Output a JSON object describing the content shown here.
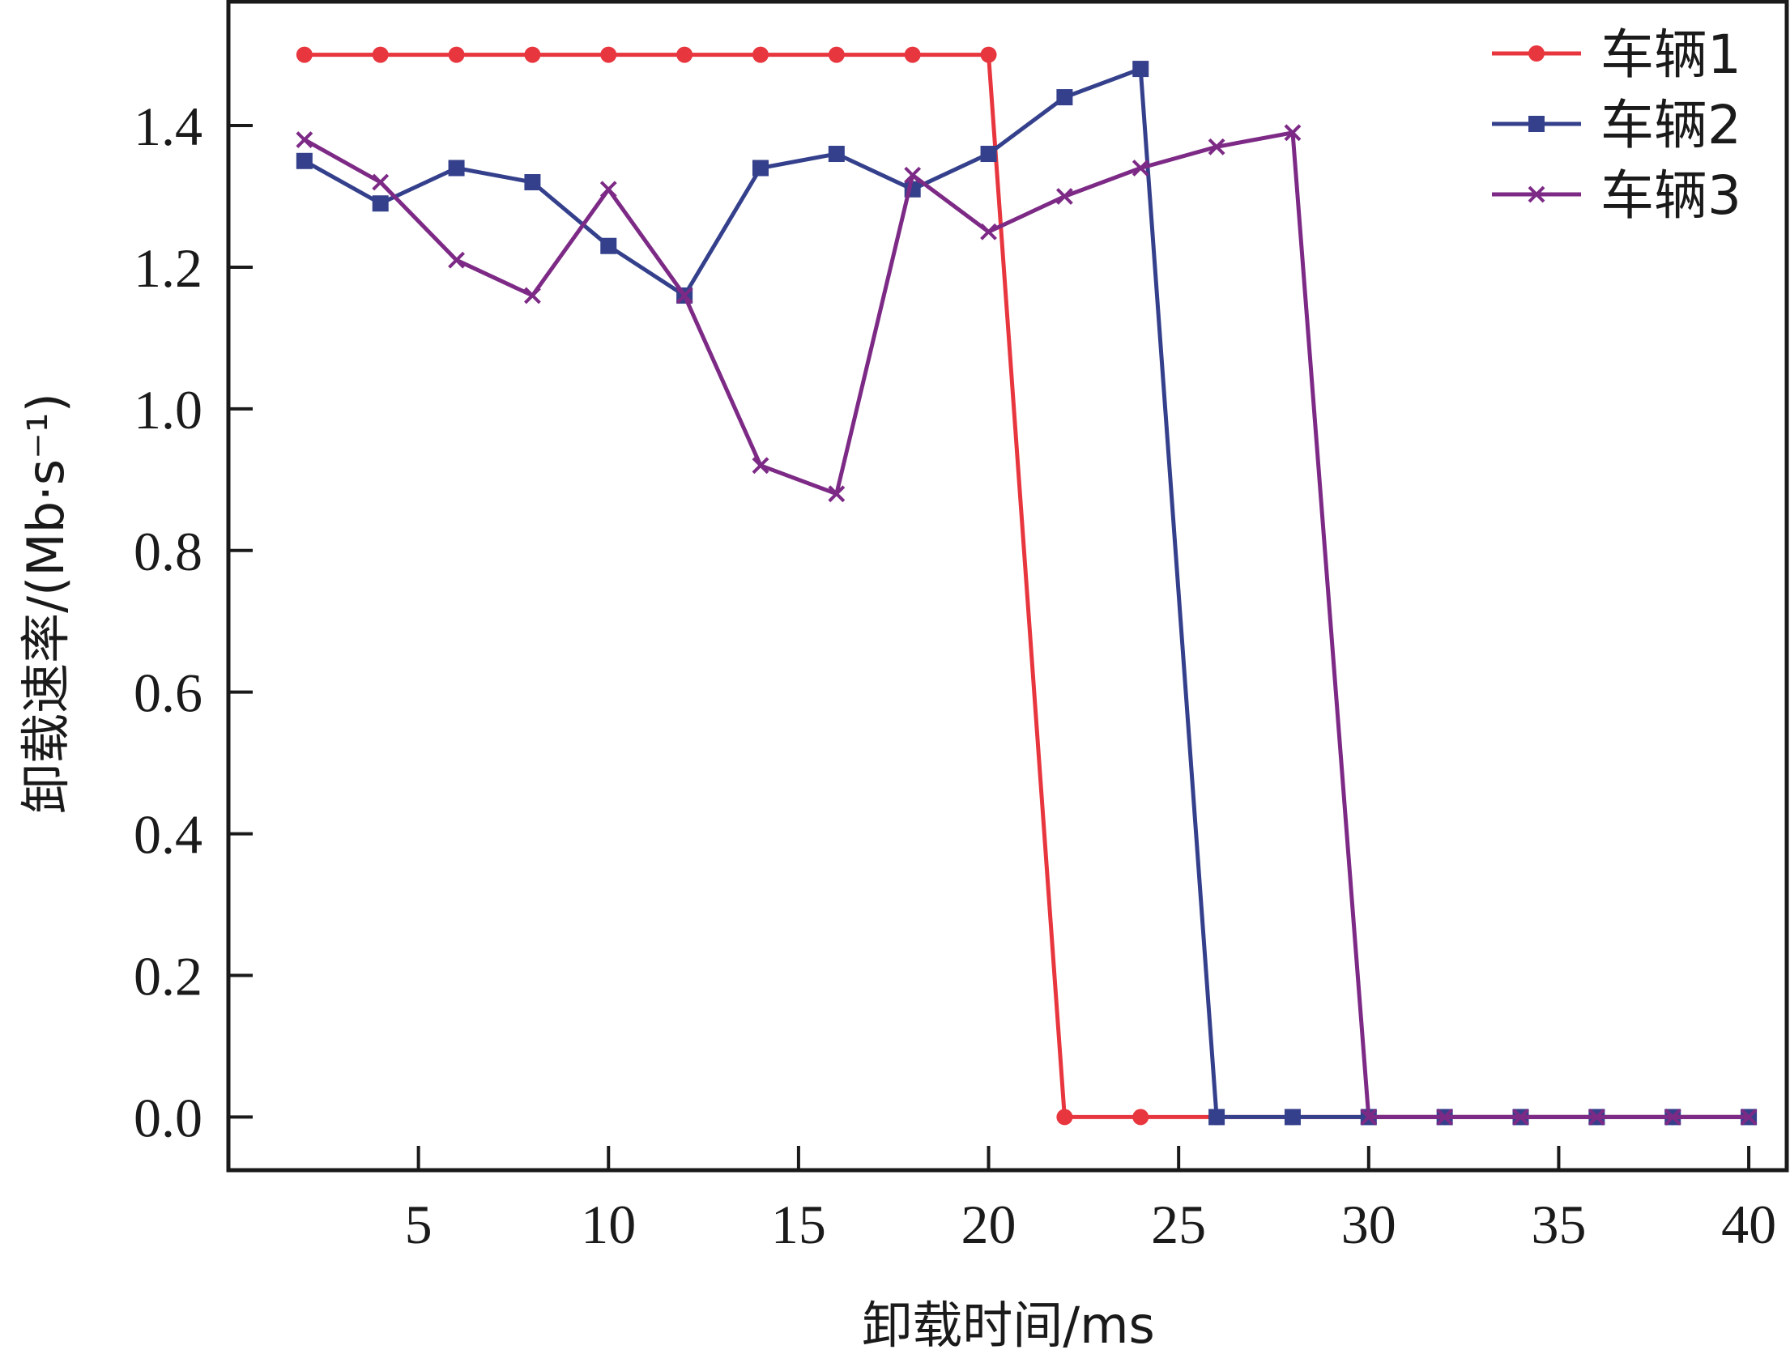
{
  "chart_data": {
    "type": "line",
    "xlabel": "卸载时间/ms",
    "ylabel": "卸载速率/(Mb·s⁻¹)",
    "xlim": [
      0,
      41
    ],
    "ylim": [
      -0.075,
      1.575
    ],
    "xticks": [
      5,
      10,
      15,
      20,
      25,
      30,
      35,
      40
    ],
    "xtick_labels": [
      "5",
      "10",
      "15",
      "20",
      "25",
      "30",
      "35",
      "40"
    ],
    "yticks": [
      0.0,
      0.2,
      0.4,
      0.6,
      0.8,
      1.0,
      1.2,
      1.4
    ],
    "ytick_labels": [
      "0.0",
      "0.2",
      "0.4",
      "0.6",
      "0.8",
      "1.0",
      "1.2",
      "1.4"
    ],
    "grid": false,
    "legend_position": "top-right",
    "series": [
      {
        "name": "车辆1",
        "color": "#e8363f",
        "marker": "circle",
        "x": [
          2,
          4,
          6,
          8,
          10,
          12,
          14,
          16,
          18,
          20,
          22,
          24,
          26,
          28,
          30,
          32,
          34,
          36,
          38,
          40
        ],
        "y": [
          1.5,
          1.5,
          1.5,
          1.5,
          1.5,
          1.5,
          1.5,
          1.5,
          1.5,
          1.5,
          0,
          0,
          0,
          0,
          0,
          0,
          0,
          0,
          0,
          0
        ]
      },
      {
        "name": "车辆2",
        "color": "#34408c",
        "marker": "square",
        "x": [
          2,
          4,
          6,
          8,
          10,
          12,
          14,
          16,
          18,
          20,
          22,
          24,
          26,
          28,
          30,
          32,
          34,
          36,
          38,
          40
        ],
        "y": [
          1.35,
          1.29,
          1.34,
          1.32,
          1.23,
          1.16,
          1.34,
          1.36,
          1.31,
          1.36,
          1.44,
          1.48,
          0,
          0,
          0,
          0,
          0,
          0,
          0,
          0
        ]
      },
      {
        "name": "车辆3",
        "color": "#7d2a86",
        "marker": "x",
        "x": [
          2,
          4,
          6,
          8,
          10,
          12,
          14,
          16,
          18,
          20,
          22,
          24,
          26,
          28,
          30,
          32,
          34,
          36,
          38,
          40
        ],
        "y": [
          1.38,
          1.32,
          1.21,
          1.16,
          1.31,
          1.16,
          0.92,
          0.88,
          1.33,
          1.25,
          1.3,
          1.34,
          1.37,
          1.39,
          0,
          0,
          0,
          0,
          0,
          0
        ]
      }
    ]
  }
}
